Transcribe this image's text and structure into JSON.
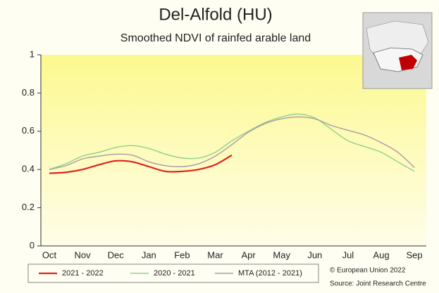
{
  "chart_data": {
    "type": "line",
    "title": "Del-Alfold (HU)",
    "subtitle": "Smoothed NDVI of rainfed arable land",
    "categories": [
      "Oct",
      null,
      "Nov",
      null,
      "Dec",
      null,
      "Jan",
      null,
      "Feb",
      null,
      "Mar",
      null,
      "Apr",
      null,
      "May",
      null,
      "Jun",
      null,
      "Jul",
      null,
      "Aug",
      null,
      "Sep"
    ],
    "series": [
      {
        "name": "2021 - 2022",
        "color": "#e02020",
        "values": [
          0.38,
          0.385,
          0.4,
          0.425,
          0.445,
          0.44,
          0.415,
          0.39,
          0.39,
          0.4,
          0.425,
          0.475,
          null,
          null,
          null,
          null,
          null,
          null,
          null,
          null,
          null,
          null,
          null
        ]
      },
      {
        "name": "2020 - 2021",
        "color": "#8fd18a",
        "values": [
          0.4,
          0.43,
          0.47,
          0.49,
          0.515,
          0.525,
          0.51,
          0.48,
          0.46,
          0.46,
          0.49,
          0.55,
          0.6,
          0.645,
          0.675,
          0.69,
          0.67,
          0.61,
          0.55,
          0.52,
          0.49,
          0.44,
          0.39
        ]
      },
      {
        "name": "MTA (2012 - 2021)",
        "color": "#a89aa8",
        "values": [
          0.4,
          0.42,
          0.455,
          0.47,
          0.48,
          0.475,
          0.44,
          0.42,
          0.415,
          0.43,
          0.47,
          0.53,
          0.595,
          0.64,
          0.665,
          0.675,
          0.665,
          0.63,
          0.605,
          0.58,
          0.54,
          0.49,
          0.41
        ]
      }
    ],
    "ylim": [
      0,
      1
    ],
    "yticks": [
      0,
      0.2,
      0.4,
      0.6,
      0.8,
      1
    ],
    "credits": [
      "© European Union 2022",
      "Source: Joint Research Centre"
    ]
  }
}
